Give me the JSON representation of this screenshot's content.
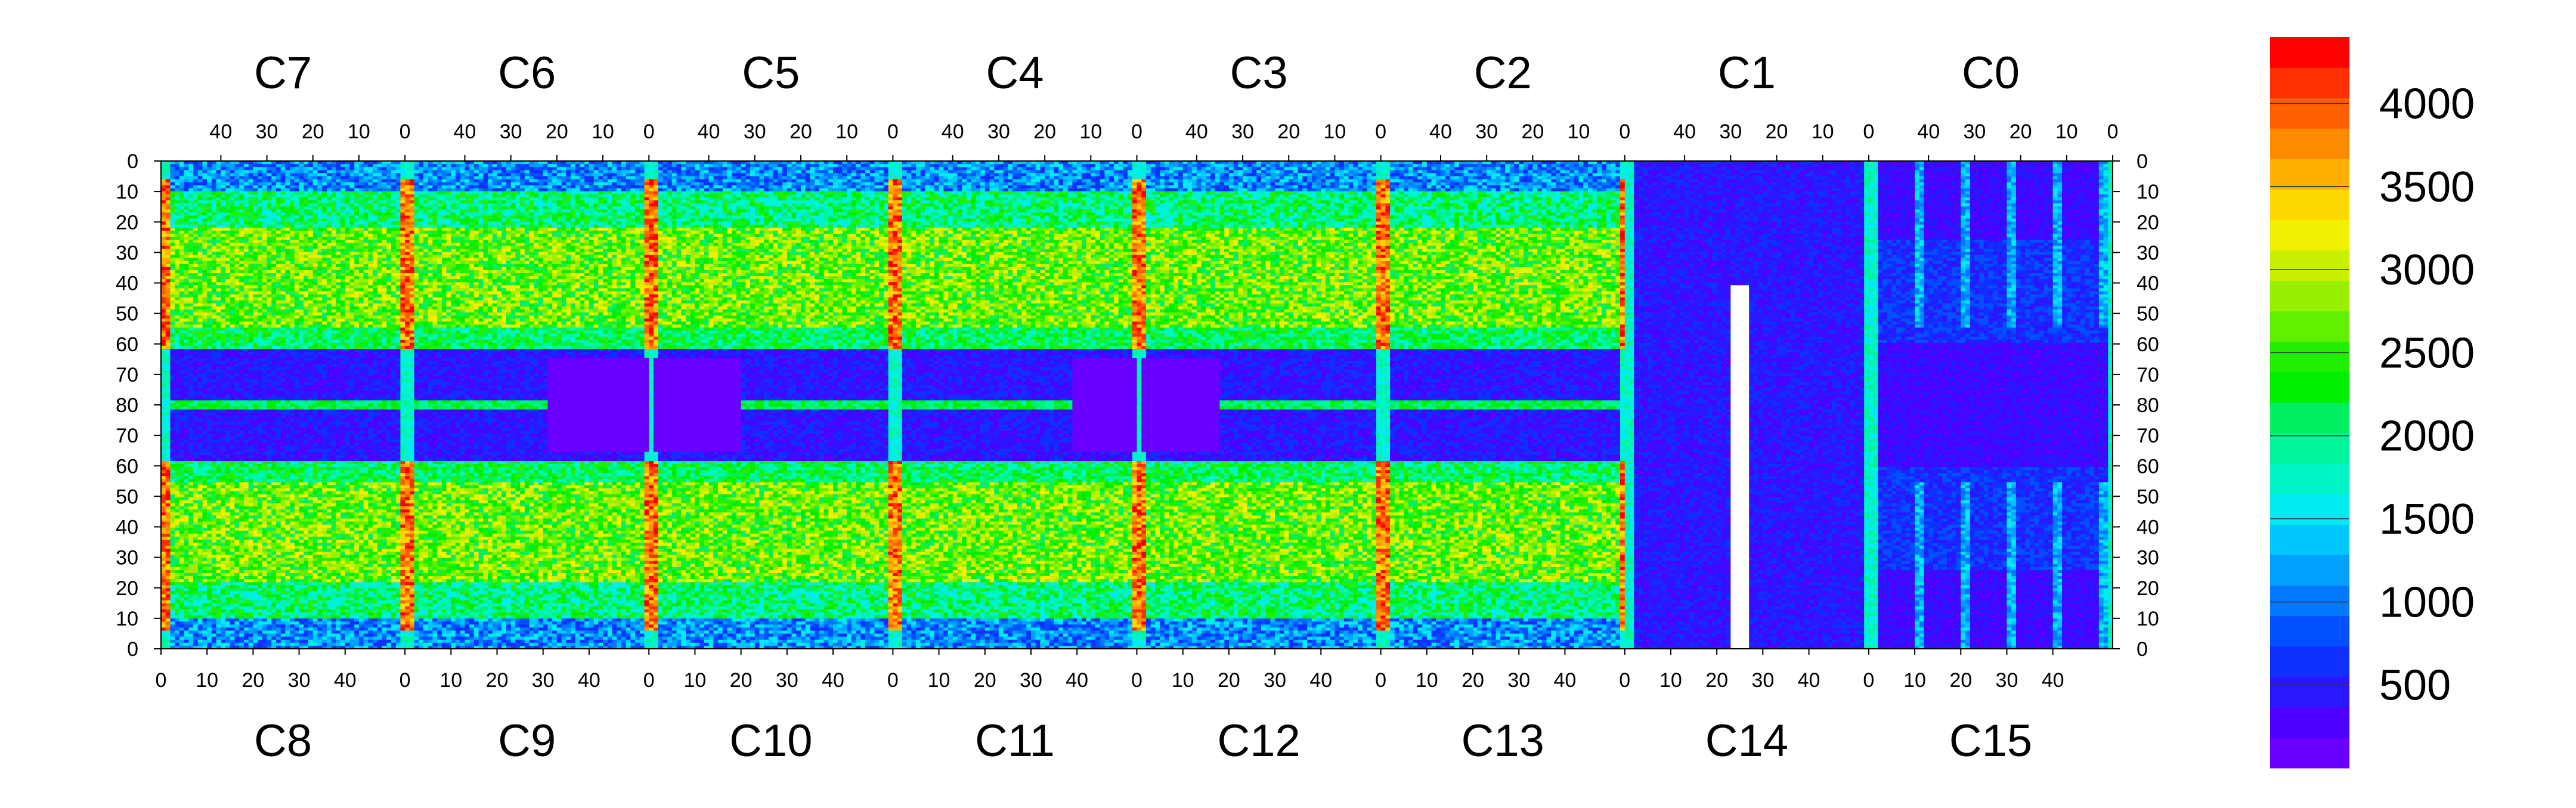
{
  "chart_data": {
    "type": "heatmap",
    "colorbar": {
      "min": 0,
      "max": 4400,
      "tick_labels": [
        "500",
        "1000",
        "1500",
        "2000",
        "2500",
        "3000",
        "3500",
        "4000"
      ],
      "tick_values": [
        500,
        1000,
        1500,
        2000,
        2500,
        3000,
        3500,
        4000
      ],
      "palette": [
        "#6a00ff",
        "#4d00ff",
        "#2a16ff",
        "#1030ff",
        "#0050ff",
        "#0078ff",
        "#00a0ff",
        "#00c8ff",
        "#00ecf0",
        "#00f5c8",
        "#00f59a",
        "#00f060",
        "#00ee00",
        "#20f000",
        "#60f000",
        "#98f000",
        "#c8f000",
        "#f0f000",
        "#ffd800",
        "#ffb000",
        "#ff8c00",
        "#ff6000",
        "#ff3000",
        "#ff0000"
      ]
    },
    "top_modules": [
      "C7",
      "C6",
      "C5",
      "C4",
      "C3",
      "C2",
      "C1",
      "C0"
    ],
    "bottom_modules": [
      "C8",
      "C9",
      "C10",
      "C11",
      "C12",
      "C13",
      "C14",
      "C15"
    ],
    "top_x_ticks": [
      "40",
      "30",
      "20",
      "10",
      "0"
    ],
    "bottom_x_ticks": [
      "0",
      "10",
      "20",
      "30",
      "40"
    ],
    "y_ticks": [
      "0",
      "10",
      "20",
      "30",
      "40",
      "50",
      "60",
      "70",
      "80",
      "70",
      "60",
      "50",
      "40",
      "30",
      "20",
      "10",
      "0"
    ],
    "grid": false
  }
}
